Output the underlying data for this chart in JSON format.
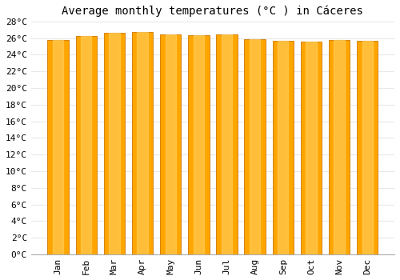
{
  "title": "Average monthly temperatures (°C ) in Cáceres",
  "months": [
    "Jan",
    "Feb",
    "Mar",
    "Apr",
    "May",
    "Jun",
    "Jul",
    "Aug",
    "Sep",
    "Oct",
    "Nov",
    "Dec"
  ],
  "values": [
    25.8,
    26.2,
    26.6,
    26.7,
    26.4,
    26.3,
    26.4,
    25.9,
    25.7,
    25.6,
    25.8,
    25.7
  ],
  "bar_color_main": "#FFA500",
  "bar_color_light": "#FFD060",
  "background_color": "#ffffff",
  "plot_bg_color": "#ffffff",
  "ylim": [
    0,
    28
  ],
  "yticks": [
    0,
    2,
    4,
    6,
    8,
    10,
    12,
    14,
    16,
    18,
    20,
    22,
    24,
    26,
    28
  ],
  "grid_color": "#e8e8e8",
  "title_fontsize": 10,
  "tick_fontsize": 8,
  "bar_edge_color": "#cc7700"
}
